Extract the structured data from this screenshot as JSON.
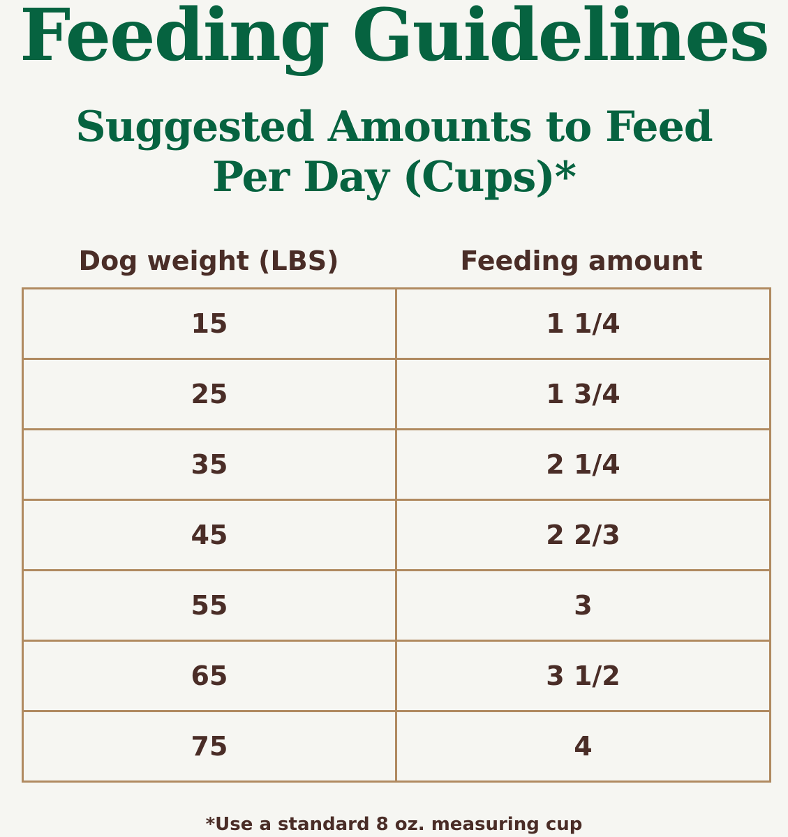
{
  "title": "Feeding Guidelines",
  "subtitle": {
    "line1": "Suggested Amounts to Feed",
    "line2": "Per Day (Cups)*"
  },
  "table": {
    "headers": [
      "Dog weight (LBS)",
      "Feeding amount"
    ],
    "rows": [
      [
        "15",
        "1 1/4"
      ],
      [
        "25",
        "1 3/4"
      ],
      [
        "35",
        "2 1/4"
      ],
      [
        "45",
        "2 2/3"
      ],
      [
        "55",
        "3"
      ],
      [
        "65",
        "3 1/2"
      ],
      [
        "75",
        "4"
      ]
    ]
  },
  "footnote": "*Use a standard 8 oz. measuring cup",
  "colors": {
    "background": "#f6f6f2",
    "title_green": "#066340",
    "text_brown": "#4a2d27",
    "border_tan": "#b08a60"
  }
}
